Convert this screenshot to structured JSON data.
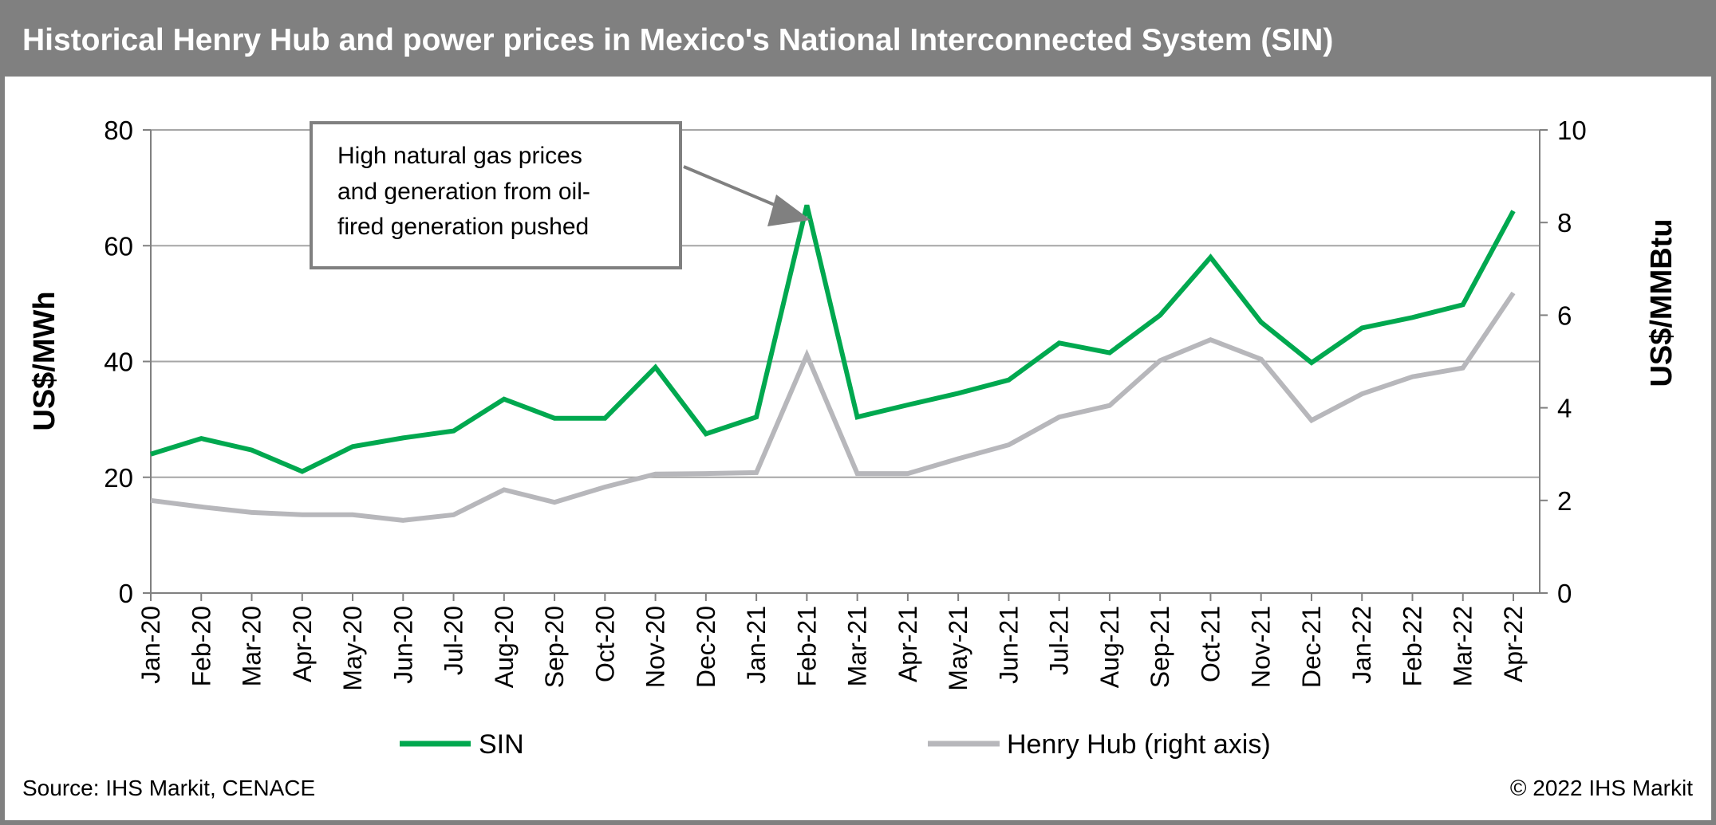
{
  "title": "Historical Henry Hub and power prices in Mexico's National Interconnected System (SIN)",
  "source": "Source: IHS Markit, CENACE",
  "copyright": "© 2022 IHS Markit",
  "annotation": {
    "lines": [
      "High natural gas prices",
      "and generation from oil-",
      "fired generation pushed"
    ]
  },
  "colors": {
    "frame": "#808080",
    "sin": "#00a84f",
    "henry_hub": "#b7b7bb",
    "grid": "#a6a6a6"
  },
  "chart_data": {
    "type": "line",
    "title": "Historical Henry Hub and power prices in Mexico's National Interconnected System (SIN)",
    "ylabel": "US$/MWh",
    "ylabel_right": "US$/MMBtu",
    "ylim": [
      0,
      80
    ],
    "ylim_right": [
      0,
      10
    ],
    "yticks": [
      "0",
      "20",
      "40",
      "60",
      "80"
    ],
    "yticks_right": [
      "0",
      "2",
      "4",
      "6",
      "8",
      "10"
    ],
    "grid": true,
    "legend": "bottom",
    "categories": [
      "Jan-20",
      "Feb-20",
      "Mar-20",
      "Apr-20",
      "May-20",
      "Jun-20",
      "Jul-20",
      "Aug-20",
      "Sep-20",
      "Oct-20",
      "Nov-20",
      "Dec-20",
      "Jan-21",
      "Feb-21",
      "Mar-21",
      "Apr-21",
      "May-21",
      "Jun-21",
      "Jul-21",
      "Aug-21",
      "Sep-21",
      "Oct-21",
      "Nov-21",
      "Dec-21",
      "Jan-22",
      "Feb-22",
      "Mar-22",
      "Apr-22"
    ],
    "series": [
      {
        "name": "SIN",
        "axis": "left",
        "color": "#00a84f",
        "values": [
          24.0,
          26.7,
          24.7,
          21.0,
          25.3,
          26.8,
          28.0,
          33.5,
          30.2,
          30.2,
          39.0,
          27.5,
          30.4,
          67.0,
          30.4,
          32.5,
          34.5,
          36.8,
          43.2,
          41.5,
          48.0,
          58.0,
          46.8,
          39.8,
          45.8,
          47.6,
          49.8,
          66.0
        ]
      },
      {
        "name": "Henry Hub (right axis)",
        "axis": "right",
        "color": "#b7b7bb",
        "values": [
          2.0,
          1.86,
          1.74,
          1.69,
          1.69,
          1.57,
          1.69,
          2.23,
          1.96,
          2.29,
          2.57,
          2.58,
          2.6,
          5.14,
          2.58,
          2.58,
          2.9,
          3.2,
          3.8,
          4.05,
          5.02,
          5.47,
          5.05,
          3.73,
          4.3,
          4.67,
          4.86,
          6.48
        ]
      }
    ]
  }
}
